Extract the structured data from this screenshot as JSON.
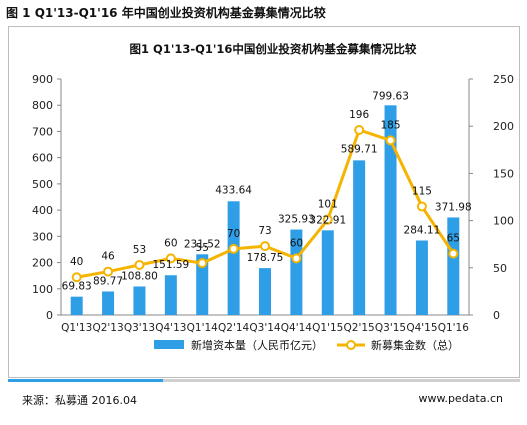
{
  "page_title": "图 1 Q1'13-Q1'16 年中国创业投资机构基金募集情况比较",
  "source": "来源：私募通 2016.04",
  "site": "www.pedata.cn",
  "colors": {
    "bar": "#2e9ee6",
    "line": "#f5b400",
    "footer_accent": "#2e9ee6"
  },
  "chart_data": {
    "type": "bar",
    "title": "图1 Q1'13-Q1'16中国创业投资机构基金募集情况比较",
    "categories": [
      "Q1'13",
      "Q2'13",
      "Q3'13",
      "Q4'13",
      "Q1'14",
      "Q2'14",
      "Q3'14",
      "Q4'14",
      "Q1'15",
      "Q2'15",
      "Q3'15",
      "Q4'15",
      "Q1'16"
    ],
    "series": [
      {
        "name": "新增资本量（人民币亿元）",
        "type": "bar",
        "axis": "left",
        "values": [
          69.83,
          89.77,
          108.8,
          151.59,
          231.52,
          433.64,
          178.75,
          325.93,
          322.91,
          589.71,
          799.63,
          284.11,
          371.98
        ],
        "labels": [
          "69.83",
          "89.77",
          "108.80",
          "151.59",
          "231.52",
          "433.64",
          "178.75",
          "325.93",
          "322.91",
          "589.71",
          "799.63",
          "284.11",
          "371.98"
        ]
      },
      {
        "name": "新募集金数（总）",
        "type": "line",
        "axis": "right",
        "values": [
          40,
          46,
          53,
          60,
          55,
          70,
          73,
          60,
          101,
          196,
          185,
          115,
          65
        ],
        "labels": [
          "40",
          "46",
          "53",
          "60",
          "55",
          "70",
          "73",
          "60",
          "101",
          "196",
          "185",
          "115",
          "65"
        ]
      }
    ],
    "ylim_left": [
      0,
      900
    ],
    "yticks_left": [
      0,
      100,
      200,
      300,
      400,
      500,
      600,
      700,
      800,
      900
    ],
    "ylim_right": [
      0,
      250
    ],
    "yticks_right": [
      0,
      50,
      100,
      150,
      200,
      250
    ],
    "grid": false,
    "legend_position": "bottom"
  }
}
